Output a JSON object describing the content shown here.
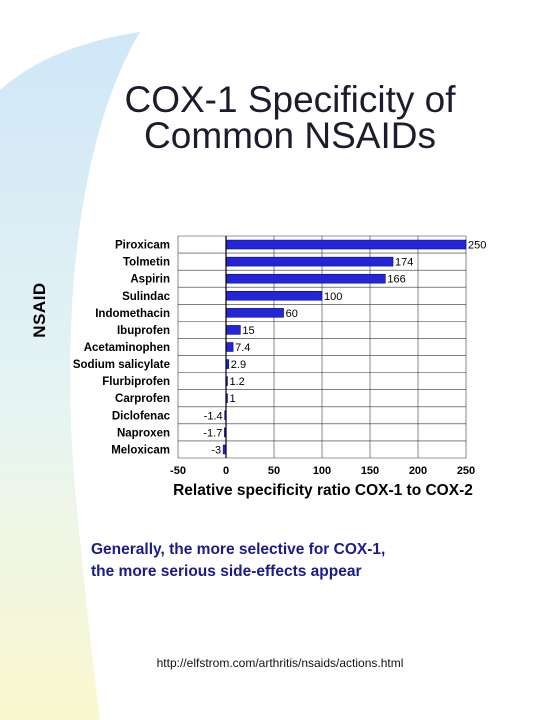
{
  "slide": {
    "title_line1": "COX-1 Specificity of",
    "title_line2": "Common NSAIDs",
    "note_line1": "Generally, the more selective for COX-1,",
    "note_line2": "the more serious side-effects appear",
    "source_url": "http://elfstrom.com/arthritis/nsaids/actions.html"
  },
  "colors": {
    "bar": "#2424d8",
    "bar_edge": "#000066",
    "title": "#1c1c2e",
    "note": "#1a1a8c",
    "bg_shape": "#d8ecf8"
  },
  "chart_data": {
    "type": "bar",
    "orientation": "horizontal",
    "xlabel": "Relative specificity ratio COX-1 to COX-2",
    "ylabel": "NSAID",
    "xlim": [
      -50,
      250
    ],
    "xticks": [
      -50,
      0,
      50,
      100,
      150,
      200,
      250
    ],
    "grid": true,
    "categories": [
      "Piroxicam",
      "Tolmetin",
      "Aspirin",
      "Sulindac",
      "Indomethacin",
      "Ibuprofen",
      "Acetaminophen",
      "Sodium salicylate",
      "Flurbiprofen",
      "Carprofen",
      "Diclofenac",
      "Naproxen",
      "Meloxicam"
    ],
    "values": [
      250,
      174,
      166,
      100,
      60,
      15,
      7.4,
      2.9,
      1.2,
      1,
      -1.4,
      -1.7,
      -3
    ],
    "value_labels": [
      "250",
      "174",
      "166",
      "100",
      "60",
      "15",
      "7.4",
      "2.9",
      "1.2",
      "1",
      "-1.4",
      "-1.7",
      "-3"
    ]
  }
}
